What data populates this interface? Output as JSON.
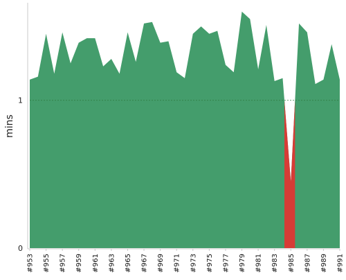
{
  "chart_data": {
    "type": "area",
    "title": "",
    "xlabel": "",
    "ylabel": "mins",
    "ylim": [
      0,
      1.66
    ],
    "yticks": [
      0,
      1
    ],
    "y_gridlines": [
      1
    ],
    "grid": "dashed horizontal line at y=1",
    "threshold": 1,
    "colors": {
      "above_threshold": "#449d6c",
      "below_threshold": "#d63c36",
      "gridline": "#2e7d3e",
      "axis": "#c8c8c8"
    },
    "x": [
      953,
      954,
      955,
      956,
      957,
      958,
      959,
      960,
      961,
      962,
      963,
      964,
      965,
      966,
      967,
      968,
      969,
      970,
      971,
      972,
      973,
      974,
      975,
      976,
      977,
      978,
      979,
      980,
      981,
      982,
      983,
      984,
      985,
      986,
      987,
      988,
      989,
      990,
      991
    ],
    "xtick_labels": [
      "#953",
      "#955",
      "#957",
      "#959",
      "#961",
      "#963",
      "#965",
      "#967",
      "#969",
      "#971",
      "#973",
      "#975",
      "#977",
      "#979",
      "#981",
      "#983",
      "#985",
      "#987",
      "#989",
      "#991"
    ],
    "series": [
      {
        "values": [
          1.14,
          1.16,
          1.45,
          1.18,
          1.46,
          1.25,
          1.39,
          1.42,
          1.42,
          1.23,
          1.28,
          1.18,
          1.46,
          1.26,
          1.52,
          1.53,
          1.39,
          1.4,
          1.19,
          1.15,
          1.45,
          1.5,
          1.45,
          1.47,
          1.24,
          1.19,
          1.6,
          1.55,
          1.21,
          1.51,
          1.13,
          1.15,
          0.45,
          1.52,
          1.46,
          1.11,
          1.14,
          1.38,
          1.14
        ]
      }
    ]
  }
}
